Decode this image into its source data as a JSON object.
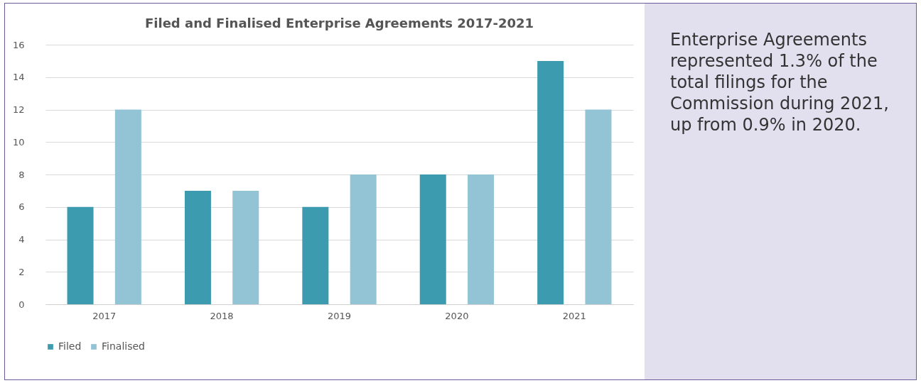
{
  "chart_data": {
    "type": "bar",
    "title": "Filed and Finalised Enterprise Agreements 2017-2021",
    "categories": [
      "2017",
      "2018",
      "2019",
      "2020",
      "2021"
    ],
    "series": [
      {
        "name": "Filed",
        "color": "#3d9bb0",
        "values": [
          6,
          7,
          6,
          8,
          15
        ]
      },
      {
        "name": "Finalised",
        "color": "#92c4d5",
        "values": [
          12,
          7,
          8,
          8,
          12
        ]
      }
    ],
    "ylim": [
      0,
      16
    ],
    "yticks": [
      0,
      2,
      4,
      6,
      8,
      10,
      12,
      14,
      16
    ],
    "grid": "y",
    "legend": "bottom",
    "annotations": [
      "Enterprise Agreements represented 1.3% of the total filings for the Commission during 2021, up from 0.9% in 2020."
    ]
  }
}
